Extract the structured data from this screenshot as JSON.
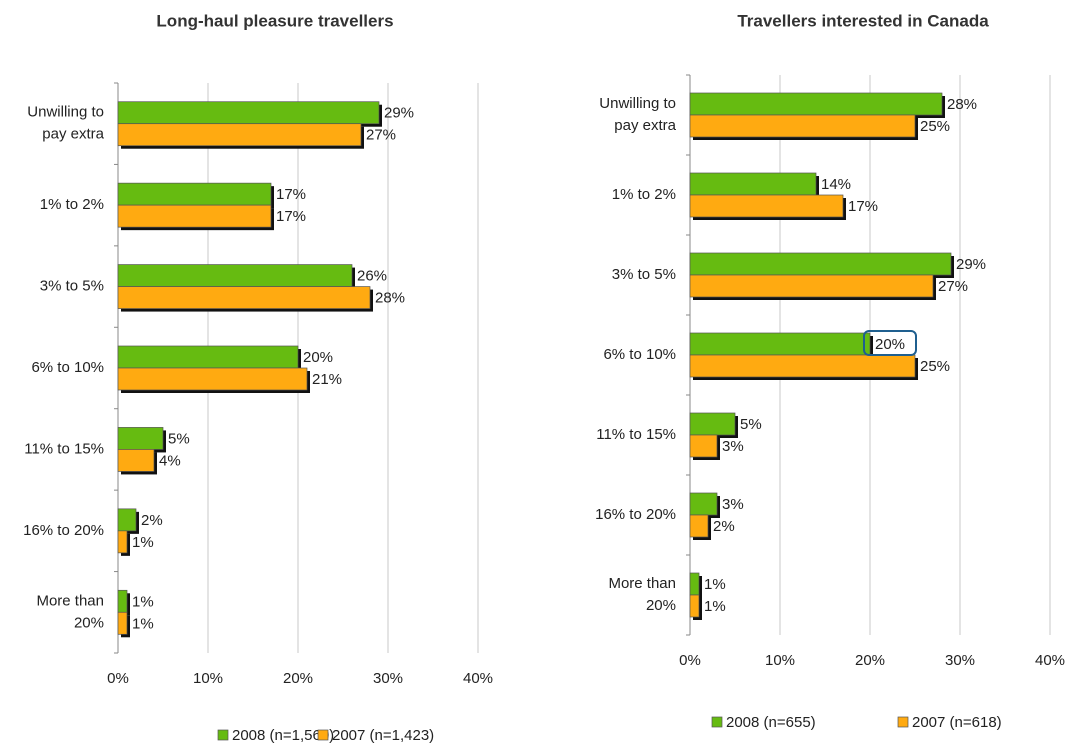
{
  "chart_data": [
    {
      "type": "bar",
      "orientation": "horizontal",
      "title": "Long-haul pleasure travellers",
      "categories": [
        "Unwilling to pay extra",
        "1% to 2%",
        "3% to 5%",
        "6% to 10%",
        "11% to 15%",
        "16% to 20%",
        "More than 20%"
      ],
      "series": [
        {
          "name": "2008 (n=1,560)",
          "color": "#66bb11",
          "values": [
            29,
            17,
            26,
            20,
            5,
            2,
            1
          ],
          "value_labels": [
            "29%",
            "17%",
            "26%",
            "20%",
            "5%",
            "2%",
            "1%"
          ]
        },
        {
          "name": "2007 (n=1,423)",
          "color": "#ffaa11",
          "values": [
            27,
            17,
            28,
            21,
            4,
            1,
            1
          ],
          "value_labels": [
            "27%",
            "17%",
            "28%",
            "21%",
            "4%",
            "1%",
            "1%"
          ]
        }
      ],
      "xlim": [
        0,
        40
      ],
      "xticks": [
        {
          "value": 0,
          "label": "0%"
        },
        {
          "value": 10,
          "label": "10%"
        },
        {
          "value": 20,
          "label": "20%"
        },
        {
          "value": 30,
          "label": "30%"
        },
        {
          "value": 40,
          "label": "40%"
        }
      ],
      "grid": true,
      "legend": "bottom"
    },
    {
      "type": "bar",
      "orientation": "horizontal",
      "title": "Travellers interested in Canada",
      "categories": [
        "Unwilling to pay extra",
        "1% to 2%",
        "3% to 5%",
        "6% to 10%",
        "11% to 15%",
        "16% to 20%",
        "More than 20%"
      ],
      "series": [
        {
          "name": "2008 (n=655)",
          "color": "#66bb11",
          "values": [
            28,
            14,
            29,
            20,
            5,
            3,
            1
          ],
          "value_labels": [
            "28%",
            "14%",
            "29%",
            "20%",
            "5%",
            "3%",
            "1%"
          ]
        },
        {
          "name": "2007 (n=618)",
          "color": "#ffaa11",
          "values": [
            25,
            17,
            27,
            25,
            3,
            2,
            1
          ],
          "value_labels": [
            "25%",
            "17%",
            "27%",
            "25%",
            "3%",
            "2%",
            "1%"
          ]
        }
      ],
      "xlim": [
        0,
        40
      ],
      "xticks": [
        {
          "value": 0,
          "label": "0%"
        },
        {
          "value": 10,
          "label": "10%"
        },
        {
          "value": 20,
          "label": "20%"
        },
        {
          "value": 30,
          "label": "30%"
        },
        {
          "value": 40,
          "label": "40%"
        }
      ],
      "grid": true,
      "legend": "bottom"
    }
  ]
}
